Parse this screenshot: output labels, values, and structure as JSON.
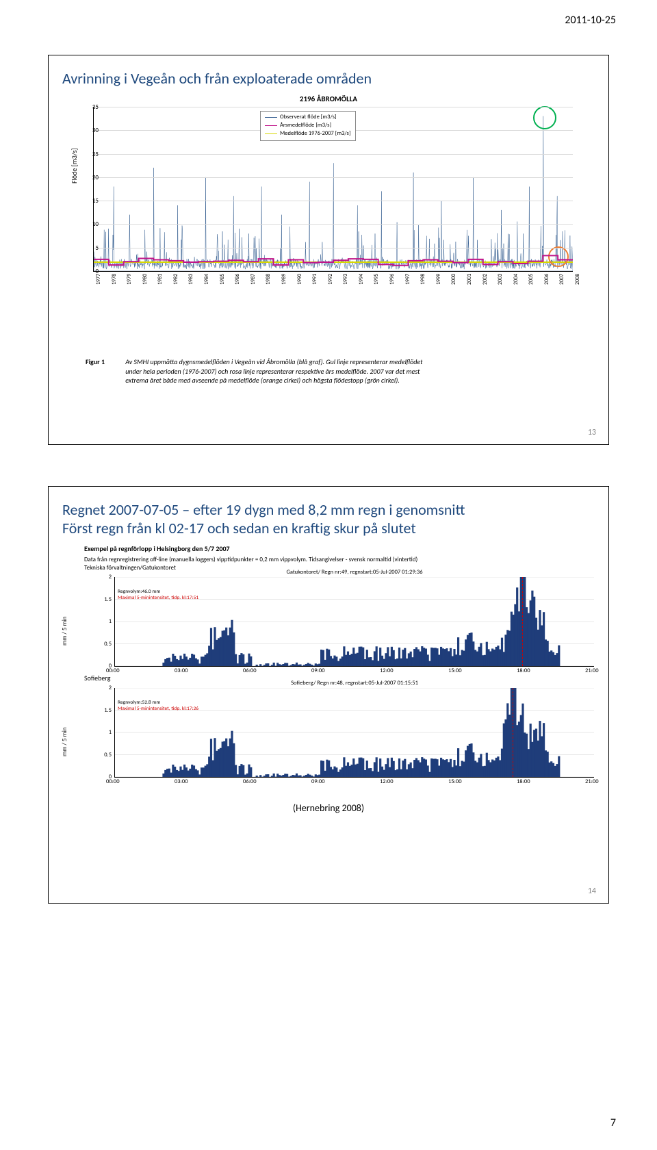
{
  "header_date": "2011-10-25",
  "page_number": "7",
  "slide1": {
    "title": "Avrinning i Vegeån och från exploaterade områden",
    "slide_num": "13",
    "chart_title": "2196 ÅBROMÖLLA",
    "ylabel": "Flöde [m3/s]",
    "ylim": [
      0,
      35
    ],
    "yticks": [
      0,
      5,
      10,
      15,
      20,
      25,
      30,
      35
    ],
    "years": [
      "1977",
      "1978",
      "1979",
      "1980",
      "1981",
      "1982",
      "1983",
      "1984",
      "1985",
      "1986",
      "1987",
      "1988",
      "1989",
      "1990",
      "1991",
      "1992",
      "1993",
      "1994",
      "1995",
      "1996",
      "1997",
      "1998",
      "1999",
      "2000",
      "2001",
      "2002",
      "2003",
      "2004",
      "2005",
      "2006",
      "2007",
      "2008"
    ],
    "legend": [
      {
        "label": "Observerat flöde [m3/s]",
        "color": "#365f91"
      },
      {
        "label": "Årsmedelflöde [m3/s]",
        "color": "#c0148a"
      },
      {
        "label": "Medelflöde 1976-2007 [m3/s]",
        "color": "#d8d800"
      }
    ],
    "series_color": "#365f91",
    "year_avg_color": "#c0148a",
    "overall_avg_color": "#d8d800",
    "overall_avg_value": 2.0,
    "year_avg_values": [
      2.5,
      1.3,
      2.0,
      2.7,
      2.4,
      2.2,
      1.9,
      2.0,
      2.1,
      2.3,
      2.0,
      2.6,
      1.3,
      2.4,
      1.8,
      1.9,
      2.3,
      2.6,
      2.5,
      1.4,
      1.2,
      2.2,
      2.4,
      2.1,
      1.8,
      2.5,
      1.4,
      2.0,
      1.6,
      2.1,
      3.3,
      2.4
    ],
    "green_circle_color": "#00b050",
    "orange_circle_color": "#ed7d31",
    "fig_label": "Figur 1",
    "fig_caption": "Av SMHI uppmätta dygnsmedelflöden i Vegeån vid Åbromölla (blå graf). Gul linje representerar medelflödet under hela perioden (1976-2007) och rosa linje representerar respektive års medelflöde. 2007 var det mest extrema året både med avseende på medelflöde (orange cirkel) och högsta flödestopp (grön cirkel)."
  },
  "slide2": {
    "title": "Regnet 2007-07-05 – efter 19 dygn med 8,2 mm regn i genomsnitt",
    "subtitle": "Först regn från kl 02-17 och sedan en kraftig skur på slutet",
    "slide_num": "14",
    "ex_title": "Exempel på regnförlopp i Helsingborg den 5/7 2007",
    "ex_note": "Data från regnregistrering off-line (manuella loggers) vipptidpunkter = 0,2 mm vippvolym. Tidsangivelser - svensk normaltid (vintertid)\nTekniska förvaltningen/Gatukontoret",
    "station2_label": "Sofieberg",
    "footer": "(Hernebring 2008)",
    "ylab": "mm / 5 min",
    "yticks": [
      0,
      0.5,
      1,
      1.5,
      2
    ],
    "xticks": [
      "00:00",
      "03:00",
      "06:00",
      "09:00",
      "12:00",
      "15:00",
      "18:00",
      "21:00"
    ],
    "chartA": {
      "title": "Gatukontoret/ Regn nr:49, regnstart:05-Jul-2007 01:29:36",
      "annot1": "Regnvolym:46.0 mm",
      "annot2": "Maximal 5-minintensitet, tidp. kl:17:51",
      "annot2_color": "#cc0000",
      "fill_color": "#1f3d7a",
      "peak_time": 17.85
    },
    "chartB": {
      "title": "Sofieberg/ Regn nr:48, regnstart:05-Jul-2007 01:15:51",
      "annot1": "Regnvolym:52.8 mm",
      "annot2": "Maximal 5-minintensitet, tidp. kl:17:26",
      "annot2_color": "#cc0000",
      "fill_color": "#1f3d7a",
      "peak_time": 17.43
    }
  }
}
